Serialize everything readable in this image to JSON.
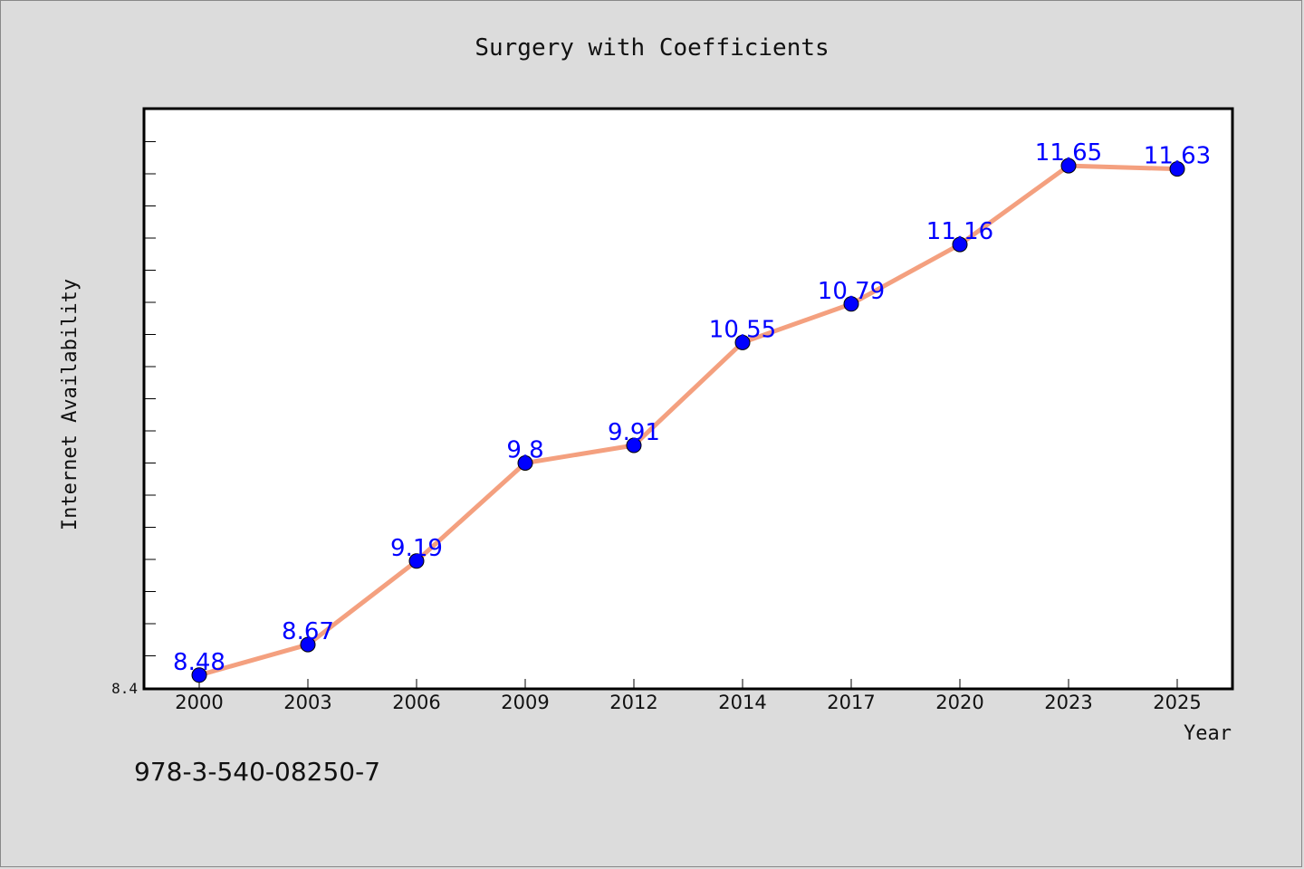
{
  "chart_data": {
    "type": "line",
    "title": "Surgery with Coefficients",
    "xlabel": "Year",
    "ylabel": "Internet Availability",
    "categories": [
      "2000",
      "2003",
      "2006",
      "2009",
      "2012",
      "2014",
      "2017",
      "2020",
      "2023",
      "2025"
    ],
    "series": [
      {
        "values": [
          8.48,
          8.67,
          9.19,
          9.8,
          9.91,
          10.55,
          10.79,
          11.16,
          11.65,
          11.63
        ],
        "labels": [
          "8.48",
          "8.67",
          "9.19",
          "9.8",
          "9.91",
          "10.55",
          "10.79",
          "11.16",
          "11.65",
          "11.63"
        ]
      }
    ],
    "ylim": [
      8.4,
      12.0
    ],
    "yticks_labeled": [
      "8.4"
    ],
    "grid": false,
    "colors": {
      "line": "#f4a07f",
      "marker": "#0000ff",
      "data_label": "#0000ff",
      "plot_bg": "#ffffff",
      "page_bg": "#dcdcdc"
    }
  },
  "footer": {
    "isbn": "978-3-540-08250-7"
  }
}
